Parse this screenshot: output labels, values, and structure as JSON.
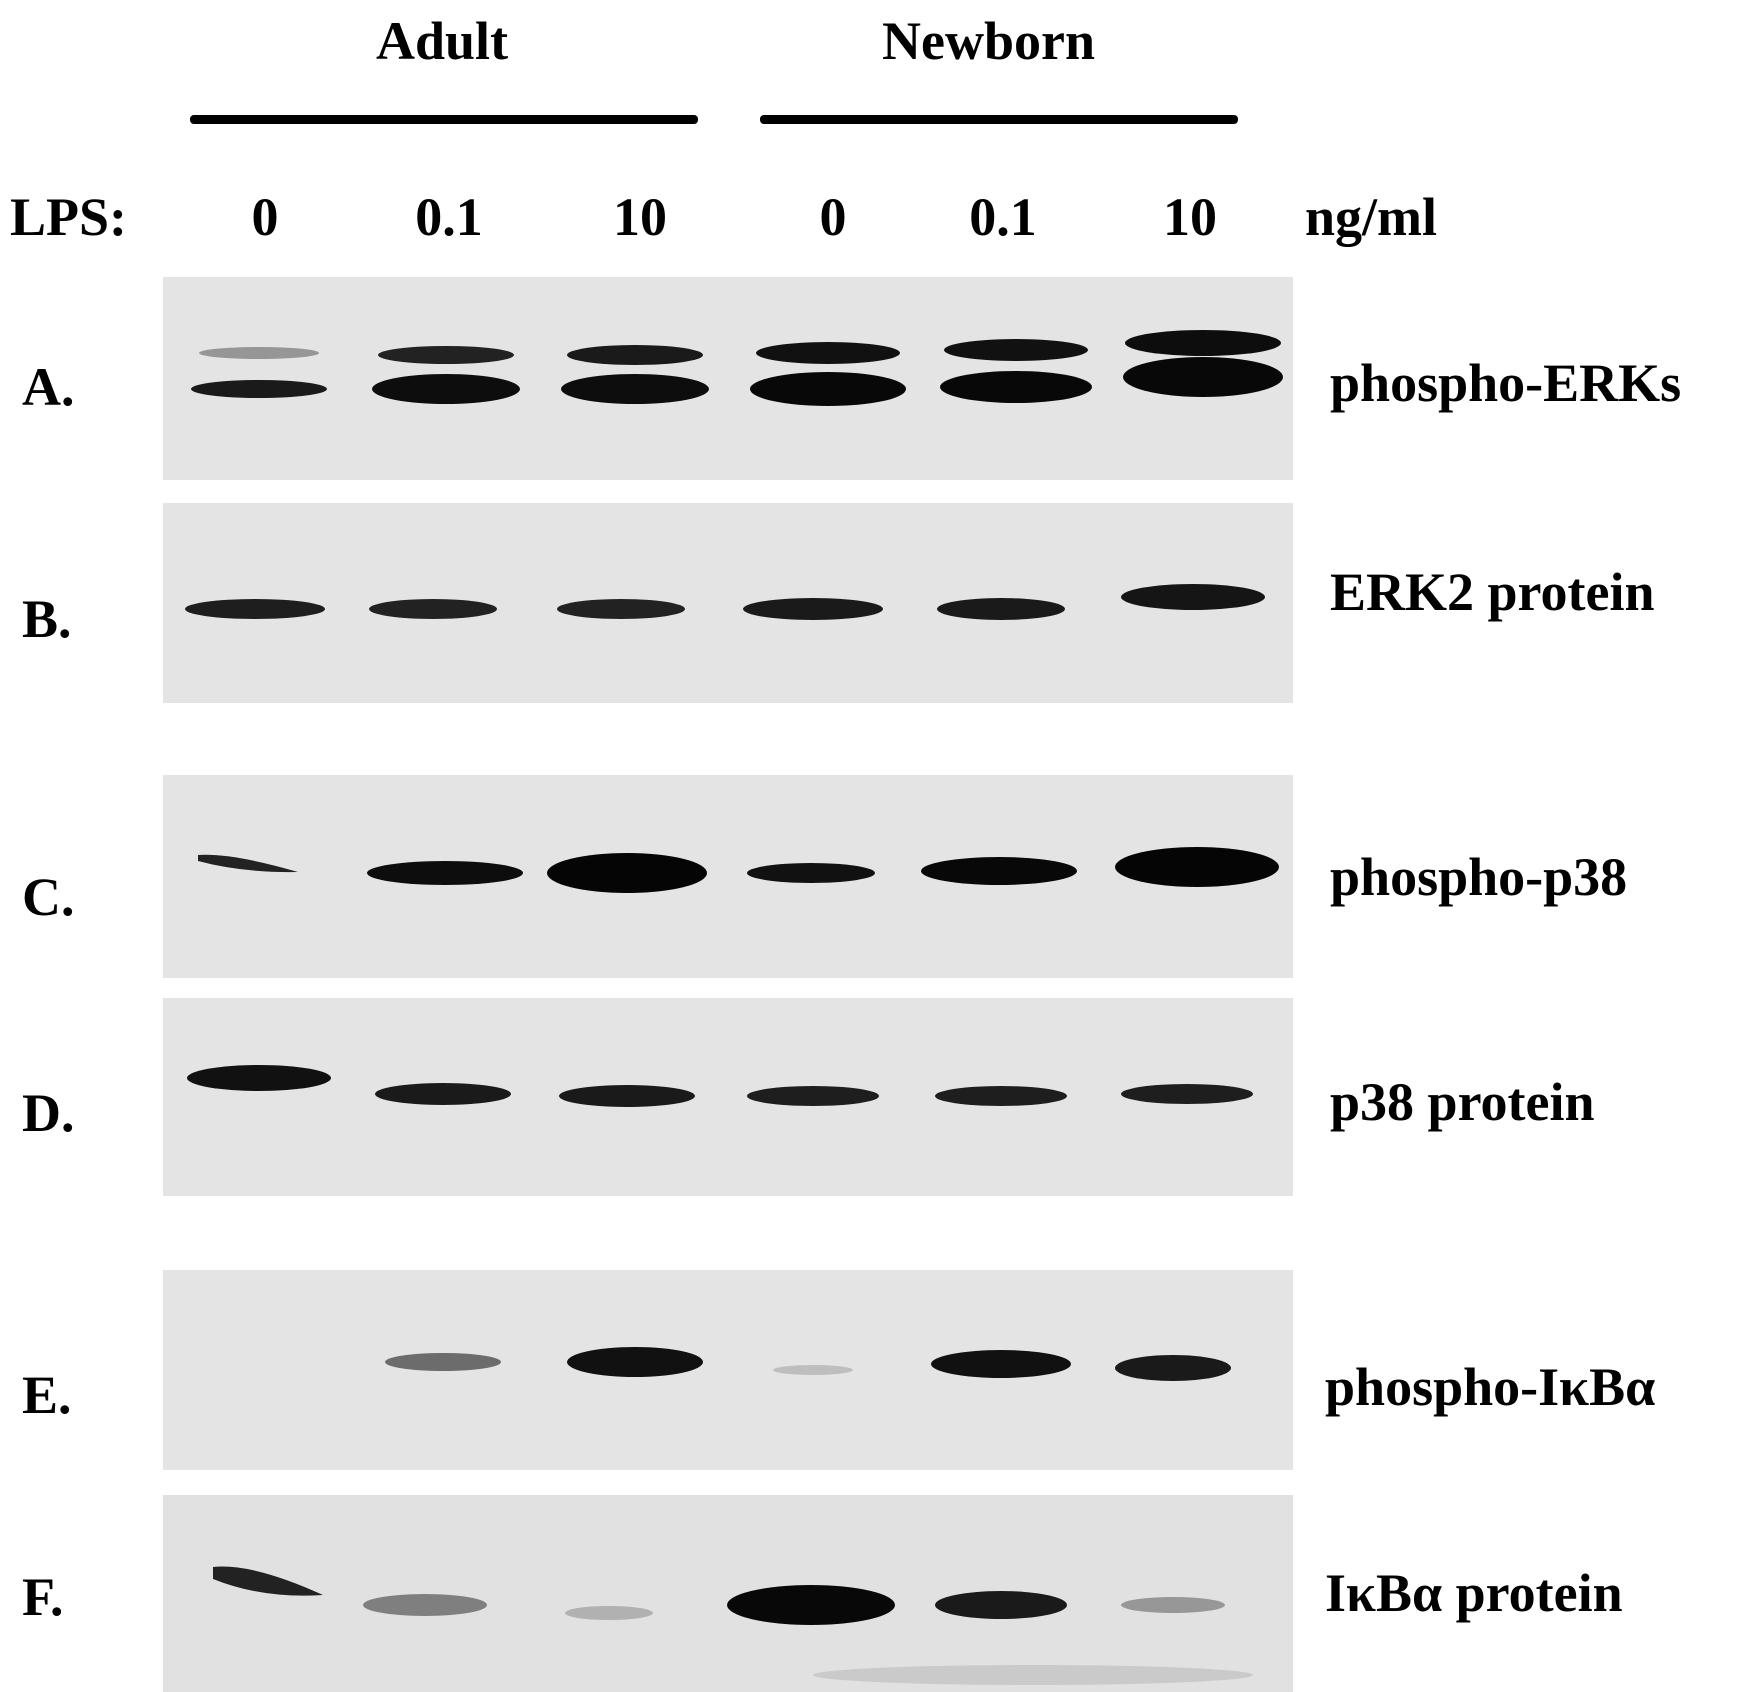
{
  "groups": {
    "adult": "Adult",
    "newborn": "Newborn"
  },
  "treatment": {
    "label": "LPS:",
    "doses": [
      "0",
      "0.1",
      "10",
      "0",
      "0.1",
      "10"
    ],
    "unit": "ng/ml"
  },
  "panels": [
    {
      "letter": "A.",
      "name": "phospho-ERKs",
      "band_intensity": [
        0.55,
        0.85,
        0.9,
        1.0,
        1.0,
        1.0
      ]
    },
    {
      "letter": "B.",
      "name": "ERK2 protein",
      "band_intensity": [
        0.7,
        0.7,
        0.7,
        0.72,
        0.72,
        0.75
      ]
    },
    {
      "letter": "C.",
      "name": "phospho-p38",
      "band_intensity": [
        0.4,
        0.8,
        1.0,
        0.65,
        0.85,
        1.0
      ]
    },
    {
      "letter": "D.",
      "name": "p38 protein",
      "band_intensity": [
        0.8,
        0.75,
        0.75,
        0.72,
        0.72,
        0.72
      ]
    },
    {
      "letter": "E.",
      "name": "phospho-IκBα",
      "band_intensity": [
        0.0,
        0.35,
        0.8,
        0.08,
        0.8,
        0.75
      ]
    },
    {
      "letter": "F.",
      "name": "IκBα protein",
      "band_intensity": [
        0.7,
        0.35,
        0.15,
        1.0,
        0.8,
        0.25
      ]
    }
  ],
  "colors": {
    "membrane": "#e6e6e6",
    "band": "#111111"
  }
}
